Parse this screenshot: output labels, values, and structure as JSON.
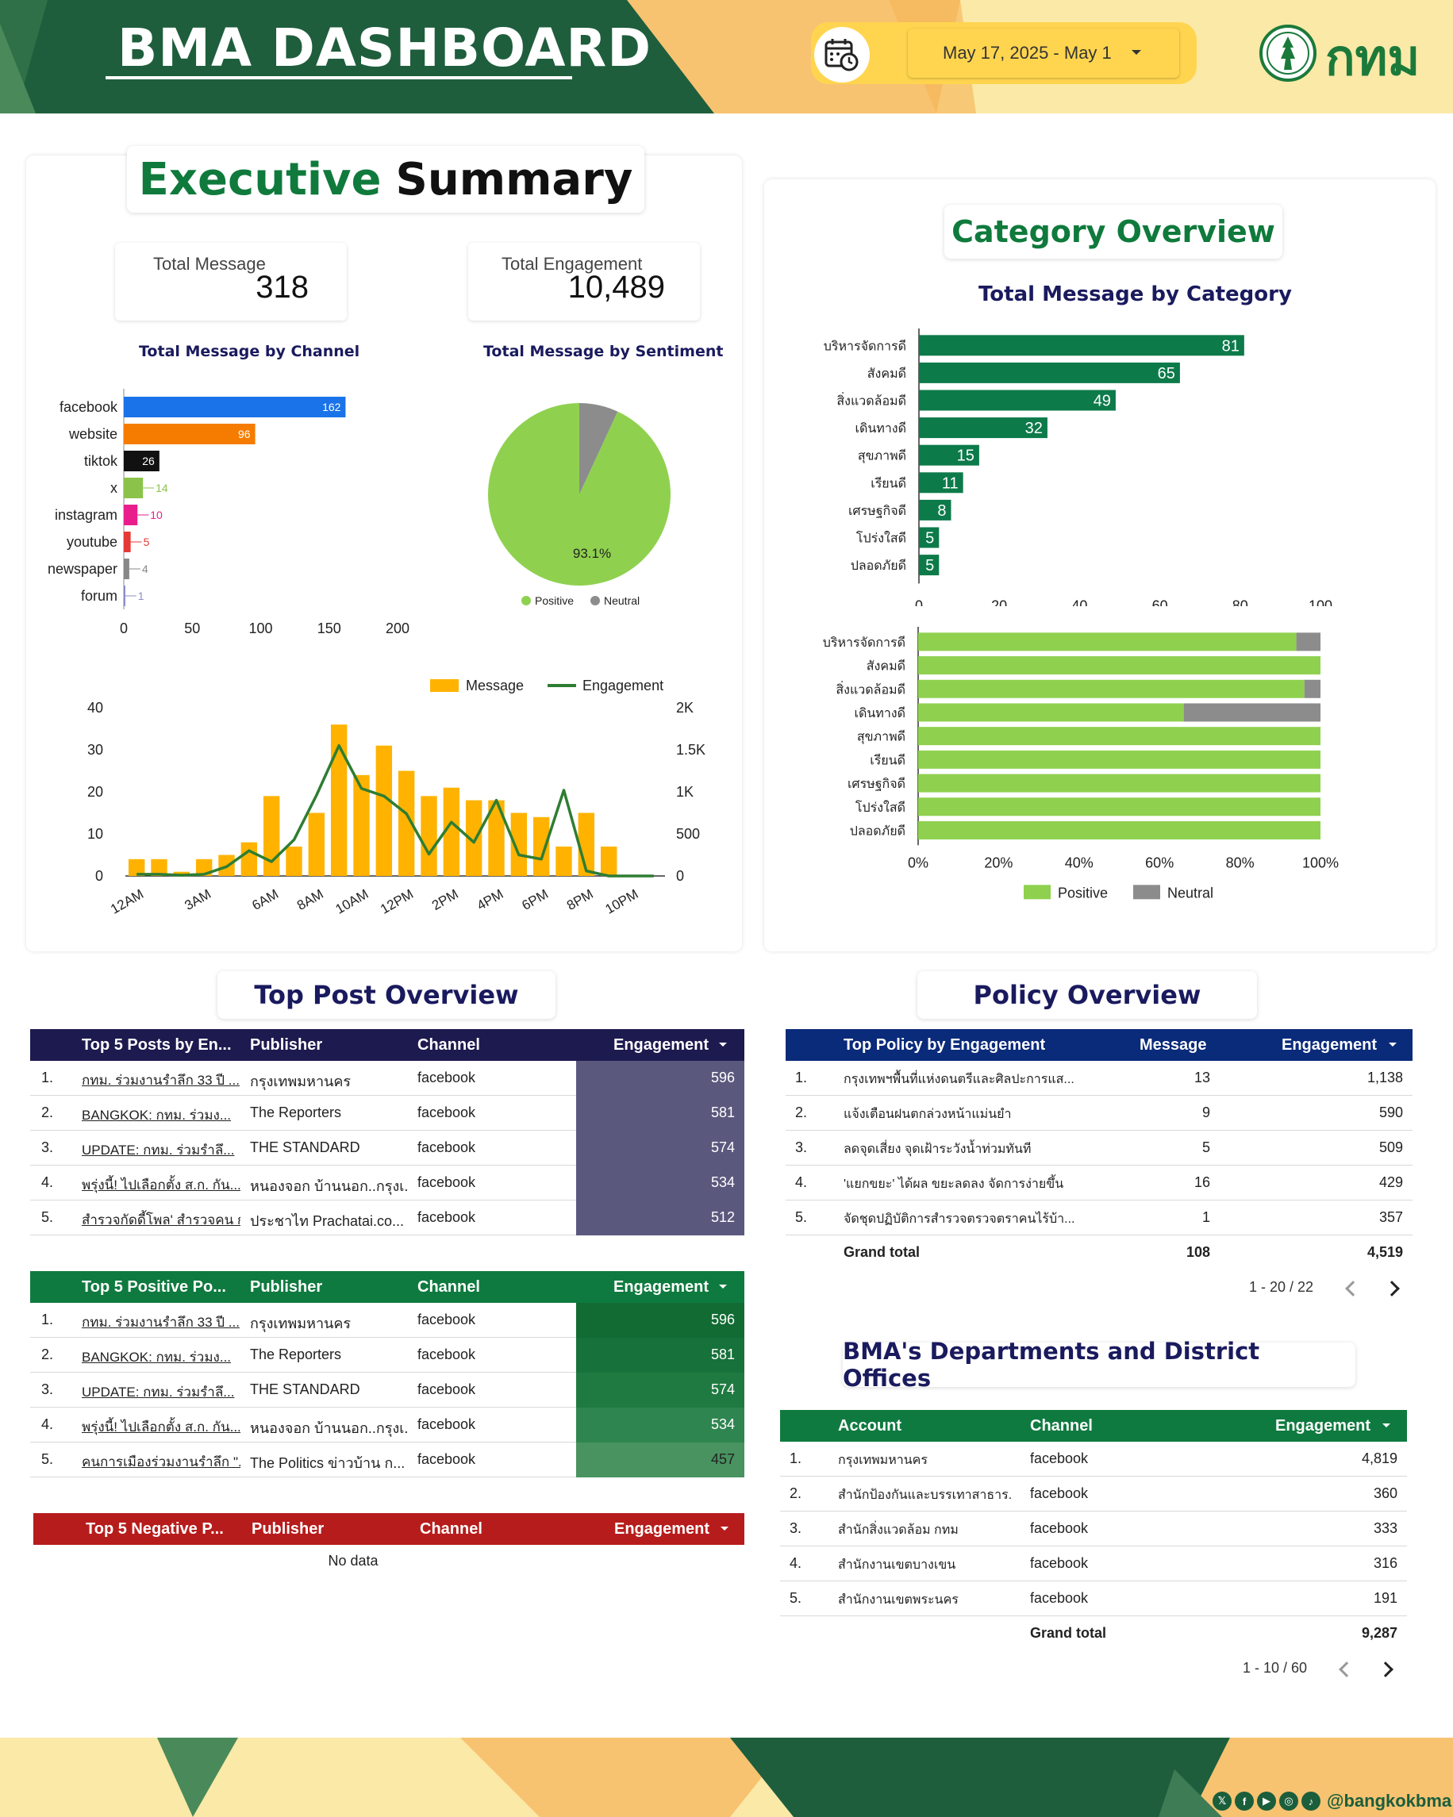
{
  "header": {
    "title": "BMA DASHBOARD",
    "date_range": "May 17, 2025 - May 1",
    "logo_text": "กทม"
  },
  "executive": {
    "title_part1": "Executive",
    "title_part2": "Summary",
    "kpi_message_label": "Total Message",
    "kpi_message_value": "318",
    "kpi_engagement_label": "Total Engagement",
    "kpi_engagement_value": "10,489",
    "channel_chart_title": "Total Message by Channel",
    "sentiment_chart_title": "Total Message by Sentiment"
  },
  "category": {
    "title": "Category Overview",
    "chart_title": "Total Message by Category"
  },
  "chart_data": [
    {
      "type": "bar",
      "orientation": "horizontal",
      "title": "Total Message by Channel",
      "categories": [
        "facebook",
        "website",
        "tiktok",
        "x",
        "instagram",
        "youtube",
        "newspaper",
        "forum"
      ],
      "values": [
        162,
        96,
        26,
        14,
        10,
        5,
        4,
        1
      ],
      "colors": [
        "#1a73e8",
        "#f57c00",
        "#111111",
        "#8bc34a",
        "#e91e8c",
        "#e53935",
        "#888888",
        "#8e8ec8"
      ],
      "xticks": [
        "0",
        "50",
        "100",
        "150",
        "200"
      ],
      "xlim": [
        0,
        200
      ]
    },
    {
      "type": "pie",
      "title": "Total Message by Sentiment",
      "labels": [
        "Positive",
        "Neutral"
      ],
      "values": [
        93.1,
        6.9
      ],
      "colors": [
        "#8fd14f",
        "#8c8c8c"
      ],
      "slice_label": "93.1%",
      "legend": "bottom"
    },
    {
      "type": "bar+line",
      "legend": [
        "Message",
        "Engagement"
      ],
      "colors": {
        "Message": "#ffb300",
        "Engagement": "#2e7d32"
      },
      "x": [
        "12AM",
        "1AM",
        "2AM",
        "3AM",
        "4AM",
        "5AM",
        "6AM",
        "7AM",
        "8AM",
        "9AM",
        "10AM",
        "11AM",
        "12PM",
        "1PM",
        "2PM",
        "3PM",
        "4PM",
        "5PM",
        "6PM",
        "7PM",
        "8PM",
        "9PM",
        "10PM",
        "11PM"
      ],
      "xtick_labels": [
        "12AM",
        "3AM",
        "6AM",
        "8AM",
        "10AM",
        "12PM",
        "2PM",
        "4PM",
        "6PM",
        "8PM",
        "10PM"
      ],
      "message": [
        4,
        4,
        1,
        4,
        5,
        8,
        19,
        7,
        15,
        36,
        24,
        31,
        25,
        19,
        21,
        18,
        18,
        15,
        14,
        7,
        15,
        7,
        0,
        0
      ],
      "engagement": [
        20,
        20,
        10,
        20,
        110,
        300,
        170,
        430,
        960,
        1550,
        1040,
        950,
        740,
        260,
        640,
        400,
        900,
        250,
        200,
        1020,
        60,
        0,
        0,
        0
      ],
      "y_left_ticks": [
        "0",
        "10",
        "20",
        "30",
        "40"
      ],
      "y_right_ticks": [
        "0",
        "500",
        "1K",
        "1.5K",
        "2K"
      ],
      "y_left_lim": [
        0,
        40
      ],
      "y_right_lim": [
        0,
        2000
      ]
    },
    {
      "type": "bar",
      "orientation": "horizontal",
      "title": "Total Message by Category",
      "categories": [
        "บริหารจัดการดี",
        "สังคมดี",
        "สิ่งแวดล้อมดี",
        "เดินทางดี",
        "สุขภาพดี",
        "เรียนดี",
        "เศรษฐกิจดี",
        "โปร่งใสดี",
        "ปลอดภัยดี"
      ],
      "values": [
        81,
        65,
        49,
        32,
        15,
        11,
        8,
        5,
        5
      ],
      "color": "#0d7a4a",
      "xticks": [
        "0",
        "20",
        "40",
        "60",
        "80",
        "100"
      ],
      "xlim": [
        0,
        100
      ]
    },
    {
      "type": "bar",
      "orientation": "horizontal",
      "stacked": "percent",
      "categories": [
        "บริหารจัดการดี",
        "สังคมดี",
        "สิ่งแวดล้อมดี",
        "เดินทางดี",
        "สุขภาพดี",
        "เรียนดี",
        "เศรษฐกิจดี",
        "โปร่งใสดี",
        "ปลอดภัยดี"
      ],
      "series": [
        {
          "name": "Positive",
          "values": [
            94,
            100,
            96,
            66,
            100,
            100,
            100,
            100,
            100
          ]
        },
        {
          "name": "Neutral",
          "values": [
            6,
            0,
            4,
            34,
            0,
            0,
            0,
            0,
            0
          ]
        }
      ],
      "colors": [
        "#8fd14f",
        "#8c8c8c"
      ],
      "xticks": [
        "0%",
        "20%",
        "40%",
        "60%",
        "80%",
        "100%"
      ],
      "legend": "bottom"
    }
  ],
  "top_post": {
    "title": "Top Post Overview",
    "engagement_table": {
      "headers": [
        "Top 5 Posts by En...",
        "Publisher",
        "Channel",
        "Engagement"
      ],
      "rows": [
        {
          "n": "1.",
          "post": "กทม. ร่วมงานรำลึก 33 ปี ...",
          "publisher": "กรุงเทพมหานคร",
          "channel": "facebook",
          "eng": "596"
        },
        {
          "n": "2.",
          "post": "BANGKOK: กทม. ร่วมง...",
          "publisher": "The Reporters",
          "channel": "facebook",
          "eng": "581"
        },
        {
          "n": "3.",
          "post": "UPDATE: กทม. ร่วมรำลึ...",
          "publisher": "THE STANDARD",
          "channel": "facebook",
          "eng": "574"
        },
        {
          "n": "4.",
          "post": "พรุ่งนี้! ไปเลือกตั้ง ส.ก. กัน...",
          "publisher": "หนองจอก บ้านนอก..กรุงเ...",
          "channel": "facebook",
          "eng": "534"
        },
        {
          "n": "5.",
          "post": "สำรวจกัดดี้โพล' สำรวจคน ก...",
          "publisher": "ประชาไท Prachatai.co...",
          "channel": "facebook",
          "eng": "512"
        }
      ]
    },
    "positive_table": {
      "headers": [
        "Top 5 Positive Po...",
        "Publisher",
        "Channel",
        "Engagement"
      ],
      "rows": [
        {
          "n": "1.",
          "post": "กทม. ร่วมงานรำลึก 33 ปี ...",
          "publisher": "กรุงเทพมหานคร",
          "channel": "facebook",
          "eng": "596"
        },
        {
          "n": "2.",
          "post": "BANGKOK: กทม. ร่วมง...",
          "publisher": "The Reporters",
          "channel": "facebook",
          "eng": "581"
        },
        {
          "n": "3.",
          "post": "UPDATE: กทม. ร่วมรำลึ...",
          "publisher": "THE STANDARD",
          "channel": "facebook",
          "eng": "574"
        },
        {
          "n": "4.",
          "post": "พรุ่งนี้! ไปเลือกตั้ง ส.ก. กัน...",
          "publisher": "หนองจอก บ้านนอก..กรุงเ...",
          "channel": "facebook",
          "eng": "534"
        },
        {
          "n": "5.",
          "post": "คนการเมืองร่วมงานรำลึก \"...",
          "publisher": "The Politics ข่าวบ้าน ก...",
          "channel": "facebook",
          "eng": "457"
        }
      ]
    },
    "negative_table": {
      "headers": [
        "Top 5 Negative P...",
        "Publisher",
        "Channel",
        "Engagement"
      ],
      "empty": "No data"
    }
  },
  "policy": {
    "title": "Policy Overview",
    "headers": [
      "Top Policy by Engagement",
      "Message",
      "Engagement"
    ],
    "rows": [
      {
        "n": "1.",
        "policy": "กรุงเทพฯพื้นที่แห่งดนตรีและศิลปะการแส...",
        "msg": "13",
        "eng": "1,138"
      },
      {
        "n": "2.",
        "policy": "แจ้งเตือนฝนตกล่วงหน้าแม่นยำ",
        "msg": "9",
        "eng": "590"
      },
      {
        "n": "3.",
        "policy": "ลดจุดเสี่ยง จุดเฝ้าระวังน้ำท่วมทันที",
        "msg": "5",
        "eng": "509"
      },
      {
        "n": "4.",
        "policy": "'แยกขยะ' ได้ผล ขยะลดลง จัดการง่ายขึ้น",
        "msg": "16",
        "eng": "429"
      },
      {
        "n": "5.",
        "policy": "จัดชุดปฏิบัติการสำรวจตรวจตราคนไร้บ้า...",
        "msg": "1",
        "eng": "357"
      }
    ],
    "grand_total_label": "Grand total",
    "grand_total_msg": "108",
    "grand_total_eng": "4,519",
    "pager": "1 - 20 / 22"
  },
  "departments": {
    "title": "BMA's Departments and District Offices",
    "headers": [
      "Account",
      "Channel",
      "Engagement"
    ],
    "rows": [
      {
        "n": "1.",
        "account": "กรุงเทพมหานคร",
        "channel": "facebook",
        "eng": "4,819"
      },
      {
        "n": "2.",
        "account": "สำนักป้องกันและบรรเทาสาธาร...",
        "channel": "facebook",
        "eng": "360"
      },
      {
        "n": "3.",
        "account": "สำนักสิ่งแวดล้อม กทม",
        "channel": "facebook",
        "eng": "333"
      },
      {
        "n": "4.",
        "account": "สำนักงานเขตบางเขน",
        "channel": "facebook",
        "eng": "316"
      },
      {
        "n": "5.",
        "account": "สำนักงานเขตพระนคร",
        "channel": "facebook",
        "eng": "191"
      }
    ],
    "grand_total_label": "Grand total",
    "grand_total_eng": "9,287",
    "pager": "1 - 10 / 60"
  },
  "footer": {
    "handle": "@bangkokbma",
    "social_icons": [
      "x-icon",
      "facebook-icon",
      "youtube-icon",
      "instagram-icon",
      "tiktok-icon"
    ]
  }
}
